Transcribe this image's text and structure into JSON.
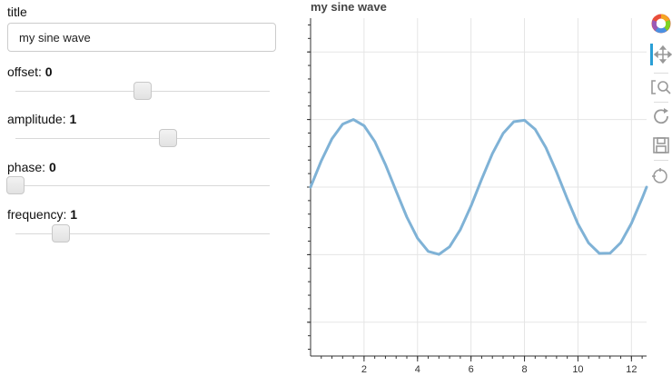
{
  "widgets": {
    "title": {
      "label": "title",
      "value": "my sine wave"
    },
    "sliders": [
      {
        "id": "offset",
        "label": "offset:",
        "value": "0",
        "fraction": 0.5
      },
      {
        "id": "amplitude",
        "label": "amplitude:",
        "value": "1",
        "fraction": 0.6
      },
      {
        "id": "phase",
        "label": "phase:",
        "value": "0",
        "fraction": 0.0
      },
      {
        "id": "frequency",
        "label": "frequency:",
        "value": "1",
        "fraction": 0.18
      }
    ]
  },
  "toolbar": {
    "tools": [
      "bokeh-logo-icon",
      "pan-icon",
      "box-zoom-icon",
      "reset-icon",
      "save-icon",
      "hover-icon"
    ]
  },
  "colors": {
    "line": "#7fb2d6",
    "grid": "#e5e5e5",
    "axis": "#333333"
  },
  "chart_data": {
    "type": "line",
    "title": "my sine wave",
    "xlabel": "",
    "ylabel": "",
    "xlim": [
      0,
      12.566
    ],
    "ylim": [
      -2.5,
      2.5
    ],
    "xticks": [
      2,
      4,
      6,
      8,
      10,
      12
    ],
    "yticks": [
      -2,
      -1,
      0,
      1,
      2
    ],
    "grid": true,
    "series": [
      {
        "x": [
          0.0,
          0.4,
          0.8,
          1.2,
          1.6,
          2.0,
          2.4,
          2.8,
          3.2,
          3.6,
          4.0,
          4.4,
          4.8,
          5.2,
          5.6,
          6.0,
          6.4,
          6.8,
          7.2,
          7.6,
          8.0,
          8.4,
          8.8,
          9.2,
          9.6,
          10.0,
          10.4,
          10.8,
          11.2,
          11.6,
          12.0,
          12.4,
          12.566
        ],
        "y": [
          0.0,
          0.389,
          0.717,
          0.932,
          1.0,
          0.909,
          0.675,
          0.335,
          -0.058,
          -0.443,
          -0.757,
          -0.952,
          -0.996,
          -0.883,
          -0.631,
          -0.279,
          0.117,
          0.494,
          0.794,
          0.968,
          0.989,
          0.855,
          0.585,
          0.223,
          -0.175,
          -0.544,
          -0.828,
          -0.981,
          -0.978,
          -0.823,
          -0.537,
          -0.166,
          0.0
        ]
      }
    ]
  }
}
